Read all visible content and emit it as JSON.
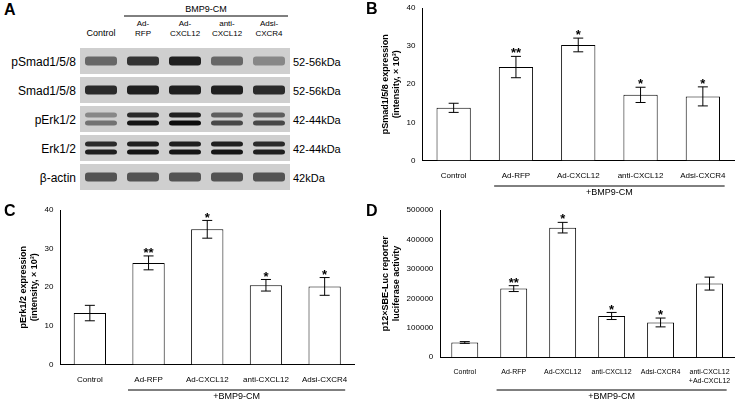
{
  "blot": {
    "title": "A",
    "control_label": "Control",
    "group": {
      "label": "BMP9-CM",
      "lanes": [
        [
          "Ad-",
          "RFP"
        ],
        [
          "Ad-",
          "CXCL12"
        ],
        [
          "anti-",
          "CXCL12"
        ],
        [
          "Adsi-",
          "CXCR4"
        ]
      ]
    },
    "rows": [
      {
        "label": "pSmad1/5/8",
        "size": "52-56kDa",
        "band_intensity": [
          [
            0.5
          ],
          [
            0.75
          ],
          [
            0.85
          ],
          [
            0.5
          ],
          [
            0.35
          ]
        ]
      },
      {
        "label": "Smad1/5/8",
        "size": "52-56kDa",
        "band_intensity": [
          [
            0.8
          ],
          [
            0.85
          ],
          [
            0.85
          ],
          [
            0.85
          ],
          [
            0.8
          ]
        ]
      },
      {
        "label": "pErk1/2",
        "size": "42-44kDa",
        "band_intensity": [
          [
            0.35,
            0.45
          ],
          [
            0.8,
            0.9
          ],
          [
            0.85,
            0.95
          ],
          [
            0.55,
            0.65
          ],
          [
            0.55,
            0.65
          ]
        ]
      },
      {
        "label": "Erk1/2",
        "size": "42-44kDa",
        "band_intensity": [
          [
            0.8,
            0.85
          ],
          [
            0.85,
            0.9
          ],
          [
            0.85,
            0.9
          ],
          [
            0.85,
            0.9
          ],
          [
            0.8,
            0.85
          ]
        ]
      },
      {
        "label": "β-actin",
        "size": "42kDa",
        "band_intensity": [
          [
            0.6
          ],
          [
            0.6
          ],
          [
            0.6
          ],
          [
            0.6
          ],
          [
            0.6
          ]
        ]
      }
    ]
  },
  "chart_data": [
    {
      "type": "bar",
      "title": "B",
      "y_label": [
        "pSmad1/5/8 expression",
        "(intensity, × 10³)"
      ],
      "categories": [
        "Control",
        "Ad-RFP",
        "Ad-CXCL12",
        "anti-CXCL12",
        "Adsi-CXCR4"
      ],
      "values": [
        13.8,
        24.5,
        30.3,
        17.2,
        16.8
      ],
      "errors": [
        1.2,
        2.8,
        1.8,
        2.0,
        2.5
      ],
      "annotations": [
        null,
        "**",
        "*",
        "*",
        "*"
      ],
      "group": {
        "label": "+BMP9-CM",
        "categories": [
          "Ad-RFP",
          "Ad-CXCL12",
          "anti-CXCL12",
          "Adsi-CXCR4"
        ]
      },
      "color": "#ffffff",
      "ylim": [
        0,
        40
      ],
      "yticks": [
        0,
        10,
        20,
        30,
        40
      ],
      "grid": false
    },
    {
      "type": "bar",
      "title": "C",
      "y_label": [
        "pErk1/2 expression",
        "(intensity, × 10³)"
      ],
      "categories": [
        "Control",
        "Ad-RFP",
        "Ad-CXCL12",
        "anti-CXCL12",
        "Adsi-CXCR4"
      ],
      "values": [
        13.3,
        26.3,
        35.0,
        20.5,
        20.2
      ],
      "errors": [
        2.0,
        1.8,
        2.3,
        1.5,
        2.3
      ],
      "annotations": [
        null,
        "**",
        "*",
        "*",
        "*"
      ],
      "group": {
        "label": "+BMP9-CM",
        "categories": [
          "Ad-RFP",
          "Ad-CXCL12",
          "anti-CXCL12",
          "Adsi-CXCR4"
        ]
      },
      "color": "#ffffff",
      "ylim": [
        0,
        40
      ],
      "yticks": [
        0,
        10,
        20,
        30,
        40
      ],
      "grid": false
    },
    {
      "type": "bar",
      "title": "D",
      "y_label": [
        "p12×SBE-Luc reporter",
        "luciferase activity"
      ],
      "categories": [
        "Control",
        "Ad-RFP",
        "Ad-CXCL12",
        "anti-CXCL12",
        "Adsi-CXCR4",
        [
          "anti-CXCL12",
          "+Ad-CXCL12"
        ]
      ],
      "values": [
        50000,
        233000,
        440000,
        140000,
        118000,
        250000
      ],
      "errors": [
        3000,
        10000,
        18000,
        12000,
        15000,
        22000
      ],
      "annotations": [
        null,
        "**",
        "*",
        "*",
        "*",
        null
      ],
      "group": {
        "label": "+BMP9-CM",
        "categories": [
          "Ad-RFP",
          "Ad-CXCL12",
          "anti-CXCL12",
          "Adsi-CXCR4",
          [
            "anti-CXCL12",
            "+Ad-CXCL12"
          ]
        ]
      },
      "color": "#ffffff",
      "ylim": [
        0,
        500000
      ],
      "yticks": [
        0,
        100000,
        200000,
        300000,
        400000,
        500000
      ],
      "grid": false
    }
  ]
}
